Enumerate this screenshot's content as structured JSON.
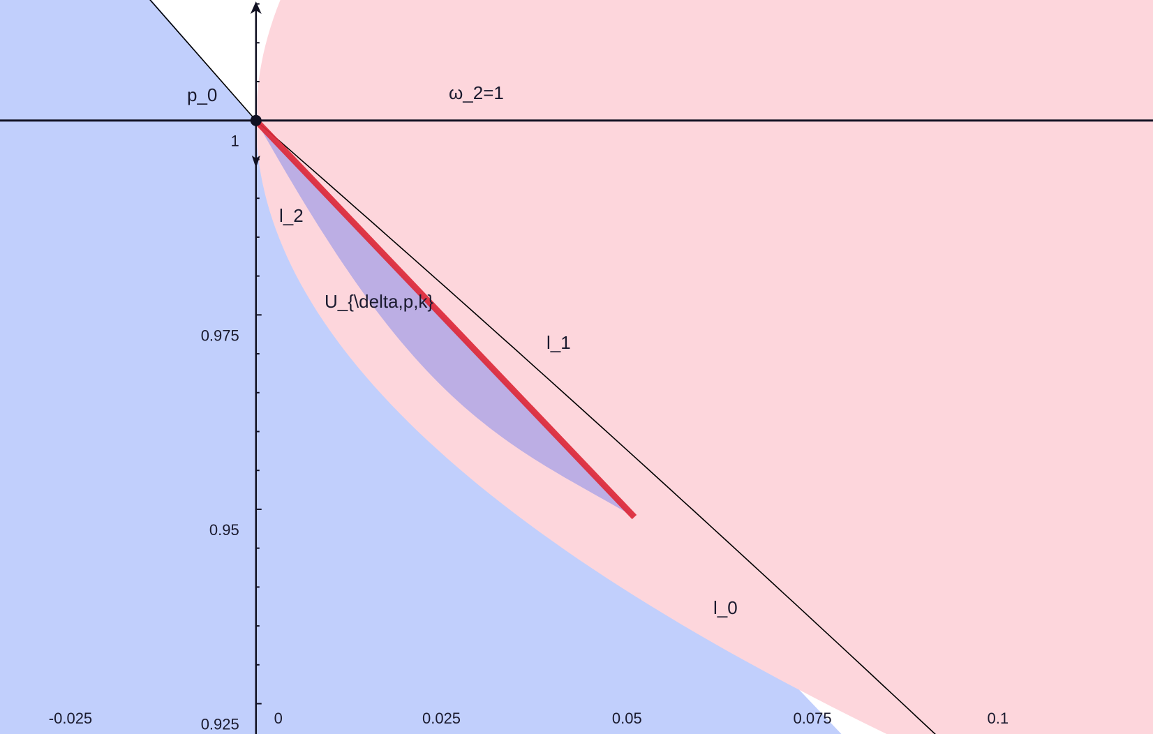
{
  "title": "",
  "colors": {
    "blue_region": "#c1cffc",
    "pink_region": "#fdd6dc",
    "overlap_region": "#bcaee4",
    "axis": "#111122",
    "thin_line": "#000000",
    "segment": "#dd2a3a",
    "point": "#111122"
  },
  "axes": {
    "xlim": [
      -0.0345,
      0.1209
    ],
    "ylim": [
      0.9211,
      1.0155
    ],
    "x_ticks": [
      {
        "value": -0.025,
        "label": "-0.025"
      },
      {
        "value": 0,
        "label": "0"
      },
      {
        "value": 0.025,
        "label": "0.025"
      },
      {
        "value": 0.05,
        "label": "0.05"
      },
      {
        "value": 0.075,
        "label": "0.075"
      },
      {
        "value": 0.1,
        "label": "0.1"
      }
    ],
    "y_ticks": [
      {
        "value": 1,
        "label": "1"
      },
      {
        "value": 0.975,
        "label": "0.975"
      },
      {
        "value": 0.95,
        "label": "0.95"
      },
      {
        "value": 0.925,
        "label": "0.925"
      }
    ],
    "minor_y_step": 0.005
  },
  "labels": {
    "p0": "p_0",
    "omega": "ω_2=1",
    "l2": "l_2",
    "l1": "l_1",
    "l0": "l_0",
    "U": "U_{\\delta,p,k}"
  },
  "geometry": {
    "p0": [
      0,
      1
    ],
    "omega_line_y": 1,
    "l0": {
      "through": [
        0,
        1
      ],
      "direction": [
        1,
        -1
      ]
    },
    "l1": {
      "through": [
        0,
        1
      ],
      "direction": [
        1,
        -0.83
      ],
      "curvature": 0.35
    },
    "pink_boundary": {
      "vertex": [
        0,
        1
      ],
      "depth_at": [
        0.085,
        0.9211
      ]
    },
    "blue_boundary_offset": 0.0035,
    "segment": {
      "from": [
        0,
        1
      ],
      "to": [
        0.051,
        0.949
      ]
    }
  }
}
